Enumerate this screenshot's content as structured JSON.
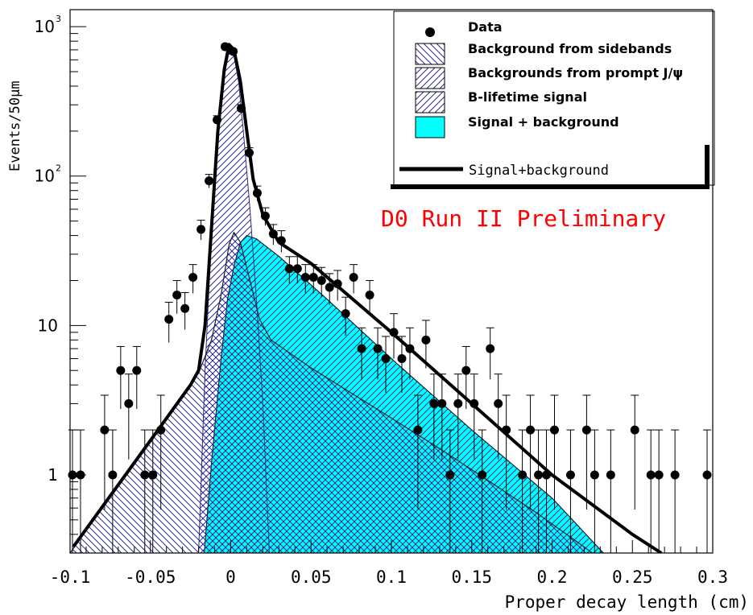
{
  "chart_data": {
    "type": "scatter",
    "yscale": "log",
    "xlim": [
      -0.1,
      0.3
    ],
    "ylim": [
      0.3,
      1300
    ],
    "xlabel": "Proper decay length (cm)",
    "ylabel": "Events/50µm",
    "x_ticks": [
      -0.1,
      -0.05,
      0,
      0.05,
      0.1,
      0.15,
      0.2,
      0.25,
      0.3
    ],
    "x_tick_labels": [
      "-0.1",
      "-0.05",
      "0",
      "0.05",
      "0.1",
      "0.15",
      "0.2",
      "0.25",
      "0.3"
    ],
    "y_ticks": [
      {
        "value": 1,
        "label": "1",
        "exp": ""
      },
      {
        "value": 10,
        "label": "10",
        "exp": ""
      },
      {
        "value": 100,
        "label": "10",
        "exp": "2"
      },
      {
        "value": 1000,
        "label": "10",
        "exp": "3"
      }
    ],
    "annotation": "D0 Run II Preliminary",
    "annotation_color": "#ff0000",
    "legend_position": "top-right",
    "legend": [
      {
        "label": "Data",
        "kind": "marker"
      },
      {
        "label": "Background from sidebands",
        "kind": "hatch-back"
      },
      {
        "label": "Backgrounds from prompt J/ψ",
        "kind": "hatch-fwd"
      },
      {
        "label": "B-lifetime signal",
        "kind": "hatch-fwd"
      },
      {
        "label": "Signal + background",
        "kind": "fill-cyan"
      },
      {
        "label": "Signal+background",
        "kind": "line"
      }
    ],
    "colors": {
      "cyan": "#00ffff",
      "hatch": "#2a2a8a",
      "line": "#000000"
    },
    "series": [
      {
        "name": "Data",
        "points": [
          {
            "x": -0.0985,
            "y": 1
          },
          {
            "x": -0.0935,
            "y": 1
          },
          {
            "x": -0.0785,
            "y": 2
          },
          {
            "x": -0.0735,
            "y": 1
          },
          {
            "x": -0.0685,
            "y": 5
          },
          {
            "x": -0.0635,
            "y": 3
          },
          {
            "x": -0.0585,
            "y": 5
          },
          {
            "x": -0.0535,
            "y": 1
          },
          {
            "x": -0.0485,
            "y": 1
          },
          {
            "x": -0.0435,
            "y": 2
          },
          {
            "x": -0.0385,
            "y": 11
          },
          {
            "x": -0.0335,
            "y": 16
          },
          {
            "x": -0.0285,
            "y": 13
          },
          {
            "x": -0.0235,
            "y": 21
          },
          {
            "x": -0.0185,
            "y": 44
          },
          {
            "x": -0.0135,
            "y": 93
          },
          {
            "x": -0.0085,
            "y": 238
          },
          {
            "x": -0.0035,
            "y": 735
          },
          {
            "x": 0.0015,
            "y": 683
          },
          {
            "x": 0.0065,
            "y": 284
          },
          {
            "x": 0.0115,
            "y": 143
          },
          {
            "x": 0.0165,
            "y": 77
          },
          {
            "x": 0.0215,
            "y": 54
          },
          {
            "x": 0.0265,
            "y": 41
          },
          {
            "x": 0.0315,
            "y": 37
          },
          {
            "x": 0.0365,
            "y": 24
          },
          {
            "x": 0.0415,
            "y": 24
          },
          {
            "x": 0.0465,
            "y": 21
          },
          {
            "x": 0.0515,
            "y": 21
          },
          {
            "x": 0.0565,
            "y": 20
          },
          {
            "x": 0.0615,
            "y": 18
          },
          {
            "x": 0.0665,
            "y": 19
          },
          {
            "x": 0.0715,
            "y": 12
          },
          {
            "x": 0.0765,
            "y": 21
          },
          {
            "x": 0.0815,
            "y": 7
          },
          {
            "x": 0.0865,
            "y": 16
          },
          {
            "x": 0.0915,
            "y": 7
          },
          {
            "x": 0.0965,
            "y": 6
          },
          {
            "x": 0.1015,
            "y": 9
          },
          {
            "x": 0.1065,
            "y": 6
          },
          {
            "x": 0.1115,
            "y": 7
          },
          {
            "x": 0.1165,
            "y": 2
          },
          {
            "x": 0.1215,
            "y": 8
          },
          {
            "x": 0.1265,
            "y": 3
          },
          {
            "x": 0.1315,
            "y": 3
          },
          {
            "x": 0.1365,
            "y": 1
          },
          {
            "x": 0.1415,
            "y": 3
          },
          {
            "x": 0.1465,
            "y": 5
          },
          {
            "x": 0.1515,
            "y": 3
          },
          {
            "x": 0.1565,
            "y": 1
          },
          {
            "x": 0.1615,
            "y": 7
          },
          {
            "x": 0.1665,
            "y": 3
          },
          {
            "x": 0.1715,
            "y": 2
          },
          {
            "x": 0.1815,
            "y": 1
          },
          {
            "x": 0.1865,
            "y": 2
          },
          {
            "x": 0.1915,
            "y": 1
          },
          {
            "x": 0.1965,
            "y": 1
          },
          {
            "x": 0.2015,
            "y": 2
          },
          {
            "x": 0.2115,
            "y": 1
          },
          {
            "x": 0.2215,
            "y": 2
          },
          {
            "x": 0.2265,
            "y": 1
          },
          {
            "x": 0.2365,
            "y": 1
          },
          {
            "x": 0.2515,
            "y": 2
          },
          {
            "x": 0.2615,
            "y": 1
          },
          {
            "x": 0.2665,
            "y": 1
          },
          {
            "x": 0.2765,
            "y": 1
          },
          {
            "x": 0.2965,
            "y": 1
          }
        ]
      },
      {
        "name": "Background from sidebands",
        "points": [
          {
            "x": -0.1,
            "y": 0.3
          },
          {
            "x": -0.05,
            "y": 1.7
          },
          {
            "x": -0.02,
            "y": 4.8
          },
          {
            "x": -0.012,
            "y": 8
          },
          {
            "x": -0.006,
            "y": 16
          },
          {
            "x": -0.001,
            "y": 35
          },
          {
            "x": 0.002,
            "y": 42
          },
          {
            "x": 0.006,
            "y": 36
          },
          {
            "x": 0.012,
            "y": 20
          },
          {
            "x": 0.018,
            "y": 11
          },
          {
            "x": 0.025,
            "y": 8
          },
          {
            "x": 0.05,
            "y": 5.2
          },
          {
            "x": 0.1,
            "y": 2.4
          },
          {
            "x": 0.13,
            "y": 1.5
          },
          {
            "x": 0.16,
            "y": 0.92
          },
          {
            "x": 0.19,
            "y": 0.56
          },
          {
            "x": 0.215,
            "y": 0.36
          },
          {
            "x": 0.225,
            "y": 0.3
          }
        ]
      },
      {
        "name": "Backgrounds from prompt J/ψ",
        "points": [
          {
            "x": -0.02,
            "y": 0.3
          },
          {
            "x": -0.016,
            "y": 5
          },
          {
            "x": -0.012,
            "y": 40
          },
          {
            "x": -0.008,
            "y": 180
          },
          {
            "x": -0.004,
            "y": 470
          },
          {
            "x": -0.001,
            "y": 680
          },
          {
            "x": 0.002,
            "y": 640
          },
          {
            "x": 0.005,
            "y": 420
          },
          {
            "x": 0.008,
            "y": 190
          },
          {
            "x": 0.012,
            "y": 60
          },
          {
            "x": 0.016,
            "y": 15
          },
          {
            "x": 0.02,
            "y": 3
          },
          {
            "x": 0.024,
            "y": 0.3
          }
        ]
      },
      {
        "name": "Signal + background",
        "points": [
          {
            "x": -0.0165,
            "y": 0.3
          },
          {
            "x": -0.012,
            "y": 1.2
          },
          {
            "x": -0.006,
            "y": 6
          },
          {
            "x": -0.002,
            "y": 15
          },
          {
            "x": 0.002,
            "y": 25
          },
          {
            "x": 0.006,
            "y": 36
          },
          {
            "x": 0.01,
            "y": 40
          },
          {
            "x": 0.016,
            "y": 38
          },
          {
            "x": 0.03,
            "y": 29
          },
          {
            "x": 0.06,
            "y": 15
          },
          {
            "x": 0.1,
            "y": 6
          },
          {
            "x": 0.15,
            "y": 2
          },
          {
            "x": 0.2,
            "y": 0.7
          },
          {
            "x": 0.232,
            "y": 0.3
          }
        ]
      },
      {
        "name": "Signal+background",
        "points": [
          {
            "x": -0.098,
            "y": 0.33
          },
          {
            "x": -0.05,
            "y": 1.7
          },
          {
            "x": -0.025,
            "y": 4
          },
          {
            "x": -0.02,
            "y": 5
          },
          {
            "x": -0.016,
            "y": 10
          },
          {
            "x": -0.012,
            "y": 45
          },
          {
            "x": -0.008,
            "y": 200
          },
          {
            "x": -0.004,
            "y": 520
          },
          {
            "x": -0.001,
            "y": 760
          },
          {
            "x": 0.002,
            "y": 700
          },
          {
            "x": 0.006,
            "y": 430
          },
          {
            "x": 0.01,
            "y": 200
          },
          {
            "x": 0.014,
            "y": 95
          },
          {
            "x": 0.02,
            "y": 55
          },
          {
            "x": 0.03,
            "y": 36
          },
          {
            "x": 0.05,
            "y": 26
          },
          {
            "x": 0.1,
            "y": 9
          },
          {
            "x": 0.15,
            "y": 3
          },
          {
            "x": 0.2,
            "y": 1
          },
          {
            "x": 0.25,
            "y": 0.4
          },
          {
            "x": 0.268,
            "y": 0.3
          }
        ]
      }
    ]
  }
}
